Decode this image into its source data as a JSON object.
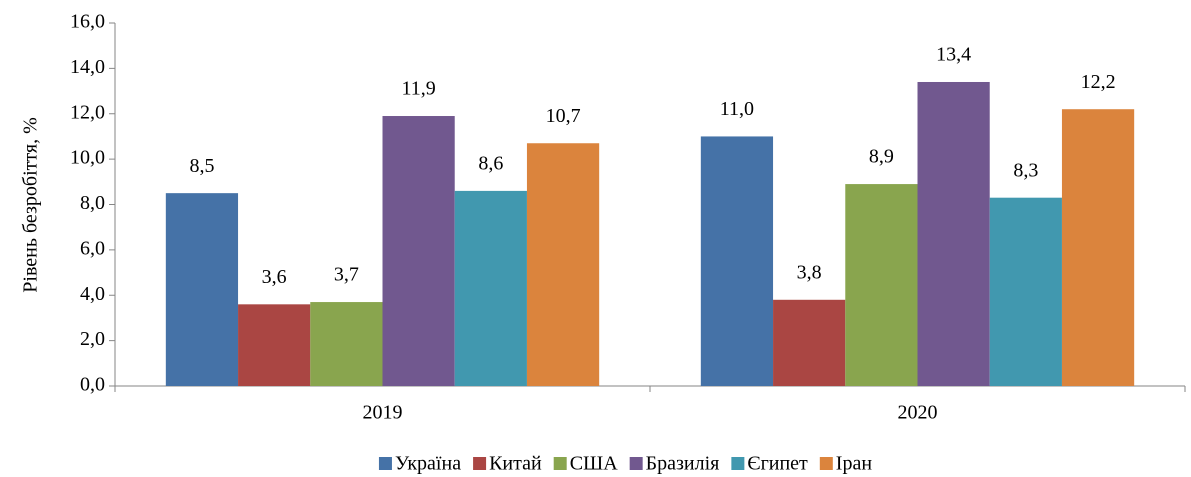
{
  "chart_data": {
    "type": "bar",
    "y_label": "Рівень безробіття, %",
    "categories": [
      "2019",
      "2020"
    ],
    "series": [
      {
        "name": "Україна",
        "color": "#4572a7",
        "values": [
          8.5,
          11.0
        ],
        "value_labels": [
          "8,5",
          "11,0"
        ]
      },
      {
        "name": "Китай",
        "color": "#aa4643",
        "values": [
          3.6,
          3.8
        ],
        "value_labels": [
          "3,6",
          "3,8"
        ]
      },
      {
        "name": "США",
        "color": "#89a54e",
        "values": [
          3.7,
          8.9
        ],
        "value_labels": [
          "3,7",
          "8,9"
        ]
      },
      {
        "name": "Бразилія",
        "color": "#71588f",
        "values": [
          11.9,
          13.4
        ],
        "value_labels": [
          "11,9",
          "13,4"
        ]
      },
      {
        "name": "Єгипет",
        "color": "#4198af",
        "values": [
          8.6,
          8.3
        ],
        "value_labels": [
          "8,6",
          "8,3"
        ]
      },
      {
        "name": "Іран",
        "color": "#db843d",
        "values": [
          10.7,
          12.2
        ],
        "value_labels": [
          "10,7",
          "12,2"
        ]
      }
    ],
    "ylim": [
      0,
      16
    ],
    "yticks": [
      {
        "value": 0,
        "label": "0,0"
      },
      {
        "value": 2,
        "label": "2,0"
      },
      {
        "value": 4,
        "label": "4,0"
      },
      {
        "value": 6,
        "label": "6,0"
      },
      {
        "value": 8,
        "label": "8,0"
      },
      {
        "value": 10,
        "label": "10,0"
      },
      {
        "value": 12,
        "label": "12,0"
      },
      {
        "value": 14,
        "label": "14,0"
      },
      {
        "value": 16,
        "label": "16,0"
      }
    ],
    "grid": false,
    "legend": "bottom"
  }
}
